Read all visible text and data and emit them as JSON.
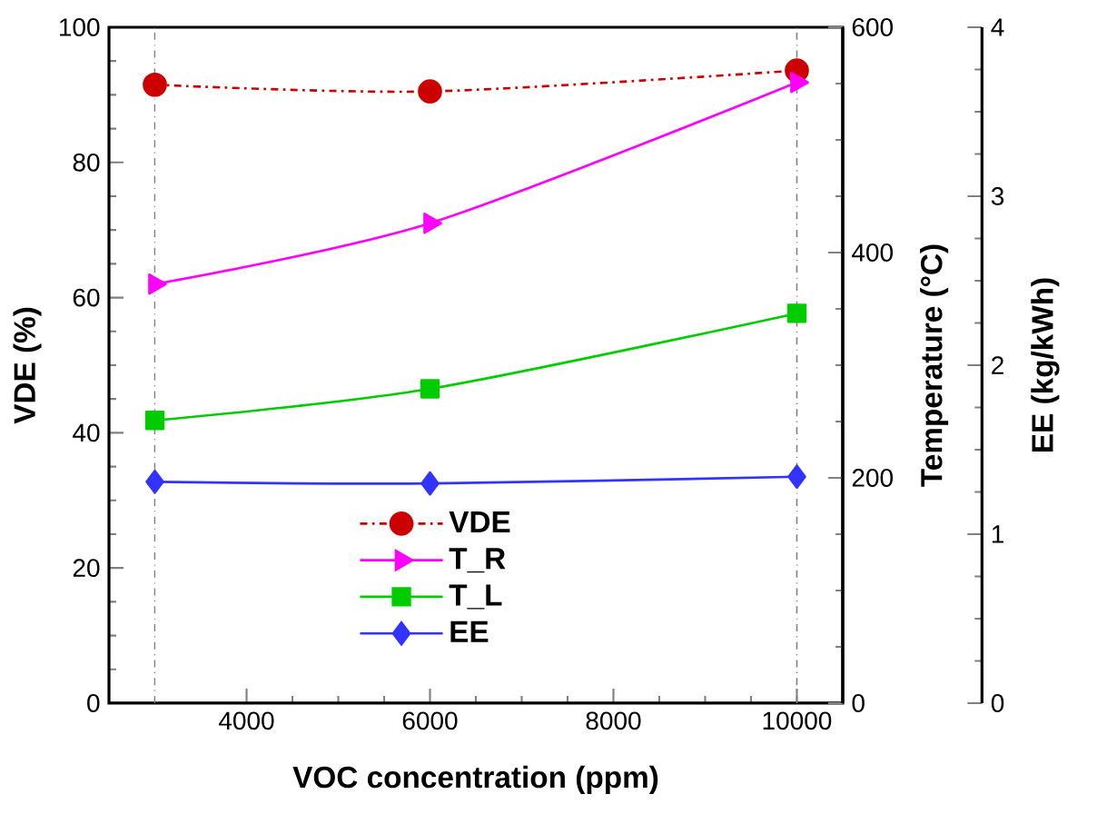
{
  "chart_data": {
    "type": "line",
    "xlabel": "VOC concentration (ppm)",
    "ylabel": "VDE (%)",
    "y2label": "Temperature (°C)",
    "y3label": "EE (kg/kWh)",
    "x": [
      3000,
      6000,
      10000
    ],
    "xlim": [
      2500,
      10500
    ],
    "xticks": [
      4000,
      6000,
      8000,
      10000
    ],
    "ylim": [
      0,
      100
    ],
    "yticks": [
      0,
      20,
      40,
      60,
      80,
      100
    ],
    "y2lim": [
      0,
      600
    ],
    "y2ticks": [
      0,
      200,
      400,
      600
    ],
    "y3lim": [
      0,
      4
    ],
    "y3ticks": [
      0,
      1,
      2,
      3,
      4
    ],
    "series": [
      {
        "name": "VDE",
        "color": "#cc0000",
        "values": [
          91.5,
          90.5,
          93.6
        ],
        "axis": "y",
        "marker": "circle",
        "line_style": "dashdot"
      },
      {
        "name": "T_R",
        "color": "#ff00ff",
        "values": [
          372,
          426,
          551
        ],
        "axis": "y2",
        "marker": "triangle",
        "line_style": "solid"
      },
      {
        "name": "T_L",
        "color": "#00cc00",
        "values": [
          251,
          279,
          346
        ],
        "axis": "y2",
        "marker": "square",
        "line_style": "solid"
      },
      {
        "name": "EE",
        "color": "#3333ff",
        "values": [
          1.31,
          1.3,
          1.34
        ],
        "axis": "y3",
        "marker": "diamond",
        "line_style": "solid"
      }
    ],
    "ref_lines": [
      {
        "axis": "x",
        "value": 3000,
        "color": "#808080",
        "line_style": "dashdot"
      },
      {
        "axis": "x",
        "value": 10000,
        "color": "#808080",
        "line_style": "dashdot"
      }
    ],
    "legend": "bottom"
  }
}
